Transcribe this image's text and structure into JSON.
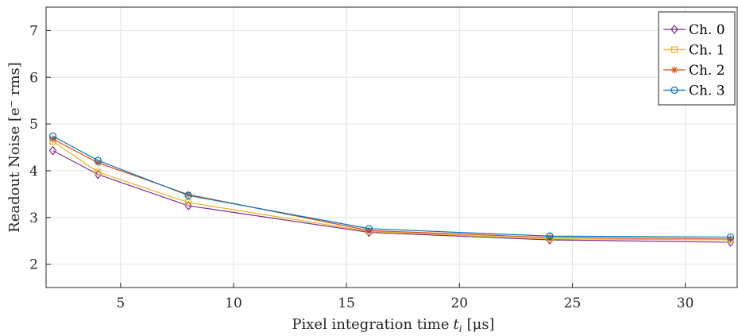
{
  "chart_data": {
    "type": "line",
    "xlabel": "Pixel integration time",
    "xlabel_var": "t",
    "xlabel_sub": "i",
    "xlabel_unit": "[μs]",
    "ylabel": "Readout Noise [e⁻ rms]",
    "xlim": [
      1.7,
      32.3
    ],
    "ylim": [
      1.5,
      7.5
    ],
    "xticks": [
      5,
      10,
      15,
      20,
      25,
      30
    ],
    "yticks": [
      2,
      3,
      4,
      5,
      6,
      7
    ],
    "grid": true,
    "legend_position": "top-right",
    "x": [
      2,
      4,
      8,
      16,
      24,
      32
    ],
    "series": [
      {
        "name": "Ch. 0",
        "color": "#7E2F8E",
        "marker": "diamond",
        "values": [
          4.43,
          3.92,
          3.25,
          2.68,
          2.52,
          2.47
        ]
      },
      {
        "name": "Ch. 1",
        "color": "#EDB120",
        "marker": "square",
        "values": [
          4.63,
          3.97,
          3.32,
          2.7,
          2.54,
          2.52
        ]
      },
      {
        "name": "Ch. 2",
        "color": "#D95319",
        "marker": "asterisk",
        "values": [
          4.68,
          4.17,
          3.49,
          2.72,
          2.57,
          2.54
        ]
      },
      {
        "name": "Ch. 3",
        "color": "#0072BD",
        "marker": "circle",
        "values": [
          4.74,
          4.22,
          3.47,
          2.76,
          2.6,
          2.58
        ]
      }
    ]
  }
}
